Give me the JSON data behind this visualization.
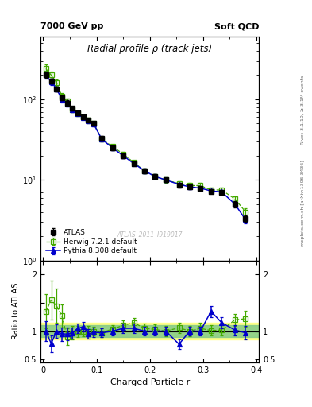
{
  "title_main": "Radial profile ρ (track jets)",
  "top_left_label": "7000 GeV pp",
  "top_right_label": "Soft QCD",
  "right_label_top": "Rivet 3.1.10, ≥ 3.1M events",
  "right_label_bottom": "mcplots.cern.ch [arXiv:1306.3436]",
  "watermark": "ATLAS_2011_I919017",
  "xlabel": "Charged Particle r",
  "ylabel_bottom": "Ratio to ATLAS",
  "atlas_x": [
    0.005,
    0.015,
    0.025,
    0.035,
    0.045,
    0.055,
    0.065,
    0.075,
    0.085,
    0.095,
    0.11,
    0.13,
    0.15,
    0.17,
    0.19,
    0.21,
    0.23,
    0.255,
    0.275,
    0.295,
    0.315,
    0.335,
    0.36,
    0.38
  ],
  "atlas_y": [
    200,
    170,
    135,
    105,
    90,
    77,
    68,
    60,
    55,
    50,
    33,
    25,
    20,
    16,
    13,
    11,
    10,
    8.5,
    8.2,
    7.8,
    7.2,
    7.0,
    5.0,
    3.3
  ],
  "atlas_yerr": [
    15,
    12,
    10,
    8,
    7,
    5,
    4,
    4,
    3,
    3,
    2,
    1.5,
    1.2,
    1.0,
    0.8,
    0.7,
    0.6,
    0.5,
    0.5,
    0.5,
    0.4,
    0.4,
    0.4,
    0.3
  ],
  "herwig_x": [
    0.005,
    0.015,
    0.025,
    0.035,
    0.045,
    0.055,
    0.065,
    0.075,
    0.085,
    0.095,
    0.11,
    0.13,
    0.15,
    0.17,
    0.19,
    0.21,
    0.23,
    0.255,
    0.275,
    0.295,
    0.315,
    0.335,
    0.36,
    0.38
  ],
  "herwig_y": [
    240,
    200,
    160,
    110,
    95,
    75,
    67,
    60,
    55,
    50,
    32,
    26,
    21,
    16.5,
    13,
    11,
    10,
    9.0,
    8.5,
    8.5,
    7.5,
    7.5,
    5.8,
    4.0
  ],
  "herwig_yerr": [
    30,
    20,
    15,
    10,
    8,
    6,
    5,
    4,
    4,
    3,
    2,
    1.5,
    1.5,
    1.0,
    0.8,
    0.8,
    0.7,
    0.6,
    0.6,
    0.6,
    0.5,
    0.5,
    0.4,
    0.4
  ],
  "pythia_x": [
    0.005,
    0.015,
    0.025,
    0.035,
    0.045,
    0.055,
    0.065,
    0.075,
    0.085,
    0.095,
    0.11,
    0.13,
    0.15,
    0.17,
    0.19,
    0.21,
    0.23,
    0.255,
    0.275,
    0.295,
    0.315,
    0.335,
    0.36,
    0.38
  ],
  "pythia_y": [
    200,
    165,
    135,
    100,
    88,
    75,
    67,
    59,
    54,
    49,
    32,
    25,
    20,
    16,
    13,
    11,
    10,
    8.8,
    8.2,
    7.9,
    7.3,
    7.1,
    5.0,
    3.2
  ],
  "pythia_yerr": [
    20,
    15,
    10,
    8,
    7,
    5,
    4,
    3,
    3,
    3,
    2,
    1.5,
    1.2,
    1.0,
    0.8,
    0.7,
    0.6,
    0.5,
    0.5,
    0.5,
    0.4,
    0.4,
    0.3,
    0.3
  ],
  "herwig_ratio": [
    1.35,
    1.55,
    1.45,
    1.27,
    0.9,
    0.97,
    0.99,
    1.0,
    1.0,
    1.0,
    0.97,
    1.04,
    1.1,
    1.15,
    1.05,
    1.03,
    1.0,
    1.06,
    1.0,
    1.05,
    1.01,
    1.02,
    1.2,
    1.22
  ],
  "herwig_ratio_err": [
    0.3,
    0.35,
    0.3,
    0.2,
    0.15,
    0.12,
    0.1,
    0.09,
    0.09,
    0.08,
    0.08,
    0.07,
    0.09,
    0.09,
    0.08,
    0.09,
    0.09,
    0.09,
    0.09,
    0.1,
    0.09,
    0.09,
    0.11,
    0.14
  ],
  "pythia_ratio": [
    1.0,
    0.78,
    1.0,
    0.95,
    0.95,
    0.97,
    1.05,
    1.08,
    0.95,
    0.98,
    0.97,
    1.0,
    1.05,
    1.05,
    1.0,
    1.0,
    1.0,
    0.77,
    1.0,
    1.0,
    1.35,
    1.15,
    1.02,
    0.97
  ],
  "pythia_ratio_err": [
    0.18,
    0.15,
    0.12,
    0.12,
    0.11,
    0.1,
    0.09,
    0.08,
    0.08,
    0.08,
    0.08,
    0.07,
    0.08,
    0.08,
    0.08,
    0.08,
    0.08,
    0.08,
    0.08,
    0.08,
    0.1,
    0.1,
    0.09,
    0.12
  ],
  "atlas_color": "#000000",
  "herwig_color": "#44aa00",
  "pythia_color": "#0000cc",
  "ylim_main": [
    1.0,
    600
  ],
  "ylim_ratio": [
    0.45,
    2.25
  ],
  "xlim": [
    -0.005,
    0.405
  ],
  "band_yellow": [
    0.85,
    1.15
  ],
  "band_green": [
    0.9,
    1.1
  ]
}
